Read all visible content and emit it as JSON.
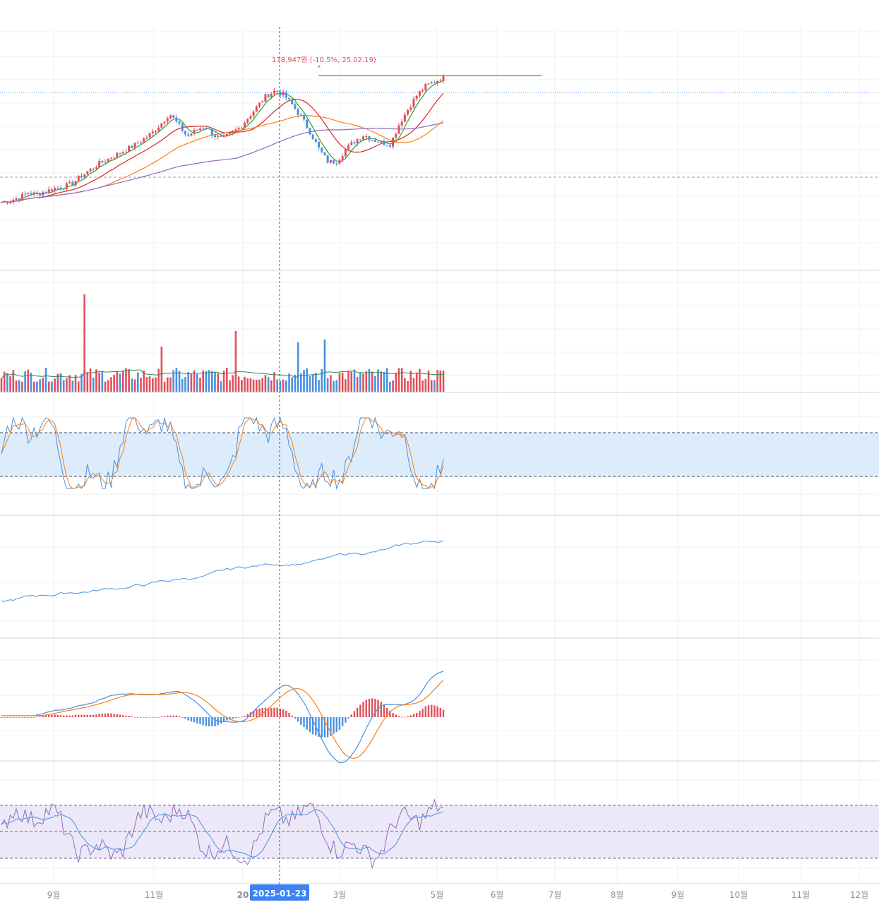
{
  "chart_data": [
    {
      "panel": "price",
      "type": "candlestick",
      "annotation": {
        "text": "178,947원 (-10.5%, 25.02.19)",
        "marker": "*"
      },
      "series": [
        {
          "color": "#2ca02c"
        },
        {
          "color": "#d62728"
        },
        {
          "color": "#ff7f0e"
        },
        {
          "color": "#9467bd"
        }
      ],
      "close_index": [
        10,
        12,
        16,
        22,
        20,
        24,
        28,
        30,
        34,
        44,
        52,
        60,
        66,
        72,
        78,
        84,
        92,
        100,
        112,
        126,
        112,
        96,
        104,
        110,
        98,
        92,
        100,
        108,
        122,
        136,
        150,
        156,
        150,
        136,
        120,
        100,
        78,
        62,
        64,
        80,
        90,
        98,
        92,
        88,
        86,
        112,
        132,
        150,
        162,
        168,
        174
      ]
    },
    {
      "panel": "volume",
      "type": "bar",
      "colors": {
        "up": "#e0505a",
        "down": "#4a90e2",
        "average": "#2e8b57"
      }
    },
    {
      "panel": "stochastic",
      "type": "line",
      "series": [
        {
          "color": "#4a90e2"
        },
        {
          "color": "#ff7f0e"
        }
      ],
      "band": {
        "color": "#dcecfb"
      }
    },
    {
      "panel": "obv",
      "type": "line",
      "series": [
        {
          "color": "#4a90e2"
        }
      ]
    },
    {
      "panel": "macd",
      "type": "line",
      "series": [
        {
          "color": "#4a90e2"
        },
        {
          "color": "#ff7f0e"
        }
      ],
      "histogram": {
        "up": "#e0505a",
        "down": "#4a90e2"
      }
    },
    {
      "panel": "rsi",
      "type": "line",
      "series": [
        {
          "color": "#8a6fc2"
        },
        {
          "color": "#4a90e2"
        }
      ],
      "band": {
        "color": "#ece8f7"
      }
    }
  ],
  "x_axis": {
    "tick_labels": [
      "9월",
      "11월",
      "20",
      "3월",
      "5월",
      "6월",
      "7월",
      "8월",
      "9월",
      "10월",
      "11월",
      "12월"
    ],
    "crosshair_label": "2025-01-23"
  },
  "colors": {
    "resistance": "#f59a23",
    "crosshair_label_bg": "#3b82f6",
    "grid": "#eef0f3"
  }
}
